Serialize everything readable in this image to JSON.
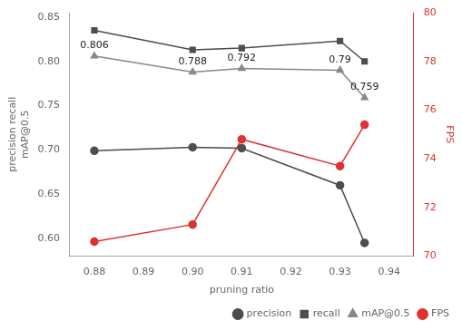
{
  "chart_data": {
    "type": "line",
    "x": [
      0.88,
      0.9,
      0.91,
      0.93,
      0.935
    ],
    "xlabel": "pruning ratio",
    "ylabel": "precision recall\nmAP@0.5",
    "y2label": "FPS",
    "series": [
      {
        "name": "precision",
        "color": "#4d4d4d",
        "marker": "circle",
        "axis": "y",
        "values": [
          0.699,
          0.703,
          0.702,
          0.66,
          0.595
        ]
      },
      {
        "name": "recall",
        "color": "#4d4d4d",
        "marker": "square",
        "axis": "y",
        "values": [
          0.835,
          0.813,
          0.815,
          0.823,
          0.8
        ]
      },
      {
        "name": "mAP@0.5",
        "color": "#888888",
        "marker": "triangle",
        "axis": "y",
        "values": [
          0.806,
          0.788,
          0.792,
          0.79,
          0.759
        ],
        "data_labels": true,
        "value_labels": [
          "0.806",
          "0.788",
          "0.792",
          "0.79",
          "0.759"
        ]
      },
      {
        "name": "FPS",
        "color": "#e03030",
        "marker": "circle",
        "axis": "y2",
        "values": [
          70.6,
          71.3,
          74.8,
          73.7,
          75.4
        ]
      }
    ],
    "xlim": [
      0.875,
      0.945
    ],
    "xticks": [
      0.88,
      0.89,
      {
        "value": 0.9,
        "label": "0.90"
      },
      0.91,
      0.92,
      0.93,
      0.94
    ],
    "ylim": [
      0.58,
      0.855
    ],
    "yticks": [
      {
        "value": 0.6,
        "label": "0.60"
      },
      0.65,
      {
        "value": 0.7,
        "label": "0.70"
      },
      0.75,
      {
        "value": 0.8,
        "label": "0.80"
      },
      0.85
    ],
    "y2lim": [
      70,
      80
    ],
    "y2ticks": [
      70,
      72,
      74,
      76,
      78,
      80
    ],
    "legend": "lower right",
    "grid": false
  }
}
